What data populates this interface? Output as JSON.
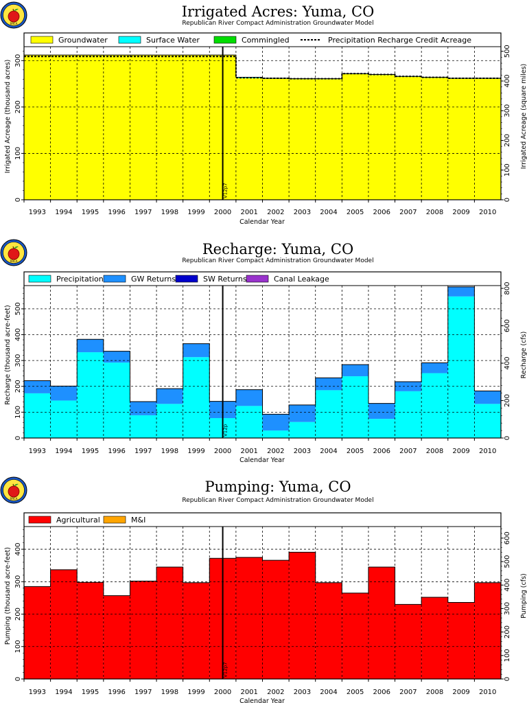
{
  "logo_text": "RRCA",
  "colors": {
    "groundwater": "#ffff00",
    "surface_water": "#00ffff",
    "commingled": "#00dd00",
    "precipitation": "#00ffff",
    "gw_returns": "#1e90ff",
    "sw_returns": "#0000cc",
    "canal_leakage": "#9932cc",
    "agricultural": "#ff0000",
    "m_and_i": "#ffa500"
  },
  "chart_data": [
    {
      "type": "area",
      "title": "Irrigated Acres: Yuma, CO",
      "subtitle": "Republican River Compact Administration Groundwater Model",
      "xlabel": "Calendar Year",
      "ylabel": "Irrigated Acreage (thousand acres)",
      "y2label": "Irrigated Acreage (square miles)",
      "categories": [
        "1993",
        "1994",
        "1995",
        "1996",
        "1997",
        "1998",
        "1999",
        "2000",
        "2001",
        "2002",
        "2003",
        "2004",
        "2005",
        "2006",
        "2007",
        "2008",
        "2009",
        "2010"
      ],
      "ylim": [
        0,
        330
      ],
      "yticks": [
        0,
        100,
        200,
        300
      ],
      "y2lim": [
        0,
        515.6
      ],
      "y2ticks": [
        0,
        100,
        200,
        300,
        400,
        500
      ],
      "grid": true,
      "legend_position": "top",
      "series": [
        {
          "name": "Groundwater",
          "color_key": "groundwater",
          "values": [
            312,
            312,
            312,
            312,
            312,
            312,
            312,
            312,
            262,
            261,
            260,
            260,
            271,
            269,
            265,
            263,
            261,
            261
          ]
        },
        {
          "name": "Surface Water",
          "color_key": "surface_water",
          "values": [
            0,
            0,
            0,
            0,
            0,
            0,
            0,
            0,
            2,
            1,
            1,
            1,
            1,
            1,
            1,
            1,
            1,
            1
          ]
        },
        {
          "name": "Commingled",
          "color_key": "commingled",
          "values": [
            0,
            0,
            0,
            0,
            0,
            0,
            0,
            0,
            0,
            0,
            0,
            0,
            0,
            0,
            0,
            0,
            0,
            0
          ]
        }
      ],
      "line_series": {
        "name": "Precipitation Recharge Credit Acreage",
        "style": "dashed",
        "values": [
          309,
          309,
          309,
          309,
          309,
          309,
          309,
          309,
          263,
          262,
          261,
          261,
          272,
          270,
          266,
          264,
          262,
          262
        ]
      },
      "marker": {
        "label": "V12p7",
        "after_category": "2000"
      }
    },
    {
      "type": "area",
      "title": "Recharge: Yuma, CO",
      "subtitle": "Republican River Compact Administration Groundwater Model",
      "xlabel": "Calendar Year",
      "ylabel": "Recharge (thousand acre-feet)",
      "y2label": "Recharge (cfs)",
      "categories": [
        "1993",
        "1994",
        "1995",
        "1996",
        "1997",
        "1998",
        "1999",
        "2000",
        "2001",
        "2002",
        "2003",
        "2004",
        "2005",
        "2006",
        "2007",
        "2008",
        "2009",
        "2010"
      ],
      "ylim": [
        0,
        590
      ],
      "yticks": [
        0,
        100,
        200,
        300,
        400,
        500
      ],
      "y2lim": [
        0,
        814.9
      ],
      "y2ticks": [
        0,
        200,
        400,
        600,
        800
      ],
      "grid": true,
      "legend_position": "top",
      "series": [
        {
          "name": "Precipitation",
          "color_key": "precipitation",
          "values": [
            173,
            145,
            332,
            292,
            88,
            132,
            313,
            77,
            124,
            29,
            62,
            185,
            239,
            74,
            181,
            251,
            548,
            132
          ]
        },
        {
          "name": "GW Returns",
          "color_key": "gw_returns",
          "values": [
            49,
            56,
            50,
            44,
            53,
            59,
            52,
            65,
            63,
            63,
            66,
            48,
            45,
            60,
            37,
            40,
            37,
            50
          ]
        },
        {
          "name": "SW Returns",
          "color_key": "sw_returns",
          "values": [
            0,
            0,
            0,
            0,
            0,
            0,
            0,
            0,
            0,
            0,
            0,
            0,
            0,
            0,
            0,
            0,
            0,
            0
          ]
        },
        {
          "name": "Canal Leakage",
          "color_key": "canal_leakage",
          "values": [
            0,
            0,
            0,
            0,
            0,
            0,
            0,
            0,
            0,
            0,
            0,
            0,
            0,
            0,
            0,
            0,
            0,
            0
          ]
        }
      ],
      "marker": {
        "label": "V12p",
        "after_category": "2000"
      }
    },
    {
      "type": "area",
      "title": "Pumping: Yuma, CO",
      "subtitle": "Republican River Compact Administration Groundwater Model",
      "xlabel": "Calendar Year",
      "ylabel": "Pumping (thousand acre-feet)",
      "y2label": "Pumping (cfs)",
      "categories": [
        "1993",
        "1994",
        "1995",
        "1996",
        "1997",
        "1998",
        "1999",
        "2000",
        "2001",
        "2002",
        "2003",
        "2004",
        "2005",
        "2006",
        "2007",
        "2008",
        "2009",
        "2010"
      ],
      "ylim": [
        0,
        470
      ],
      "yticks": [
        0,
        100,
        200,
        300,
        400
      ],
      "y2lim": [
        0,
        649.2
      ],
      "y2ticks": [
        0,
        100,
        200,
        300,
        400,
        500,
        600
      ],
      "grid": true,
      "legend_position": "top",
      "series": [
        {
          "name": "Agricultural",
          "color_key": "agricultural",
          "values": [
            285,
            337,
            298,
            257,
            302,
            345,
            297,
            372,
            375,
            366,
            391,
            297,
            265,
            345,
            230,
            252,
            236,
            297
          ]
        },
        {
          "name": "M&I",
          "color_key": "m_and_i",
          "values": [
            0,
            0,
            0,
            0,
            0,
            0,
            0,
            0,
            0,
            0,
            0,
            0,
            0,
            0,
            0,
            0,
            0,
            0
          ]
        }
      ],
      "marker": {
        "label": "V12p7",
        "after_category": "2000"
      }
    }
  ]
}
